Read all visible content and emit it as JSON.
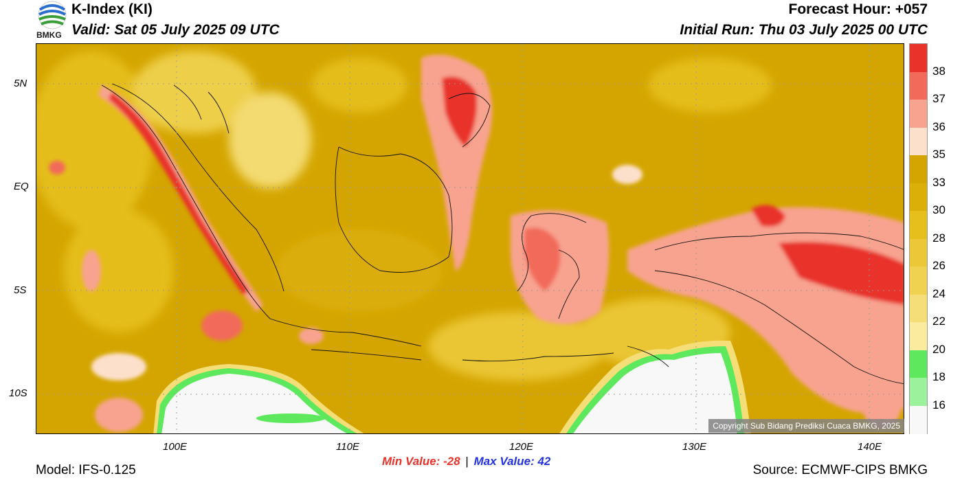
{
  "header": {
    "title": "K-Index (KI)",
    "valid": "Valid: Sat 05 July 2025 09 UTC",
    "forecast_hour": "Forecast Hour: +057",
    "initial_run": "Initial Run: Thu 03 July 2025 00 UTC"
  },
  "logo": {
    "text": "BMKG"
  },
  "map": {
    "y_ticks": [
      "5N",
      "EQ",
      "5S",
      "10S"
    ],
    "x_ticks": [
      "100E",
      "110E",
      "120E",
      "130E",
      "140E"
    ],
    "copyright": "Copyright Sub Bidang Prediksi Cuaca BMKG, 2025"
  },
  "colorbar": {
    "levels": [
      "38",
      "37",
      "36",
      "35",
      "33",
      "30",
      "28",
      "26",
      "24",
      "22",
      "20",
      "18",
      "16"
    ],
    "colors": [
      "#e8322a",
      "#f26a5a",
      "#f8a390",
      "#fde0cc",
      "#d4a500",
      "#dcae08",
      "#e6bf1c",
      "#ecc838",
      "#f0d250",
      "#f5de78",
      "#fbeb9e",
      "#5ee85e",
      "#9cf29c",
      "#f8f8f8"
    ]
  },
  "stats": {
    "min": "Min Value: -28",
    "separator": "|",
    "max": "Max Value:  42",
    "min_color": "#e8322a",
    "max_color": "#2233dd"
  },
  "footer": {
    "model": "Model: IFS-0.125",
    "source": "Source: ECMWF-CIPS BMKG"
  }
}
